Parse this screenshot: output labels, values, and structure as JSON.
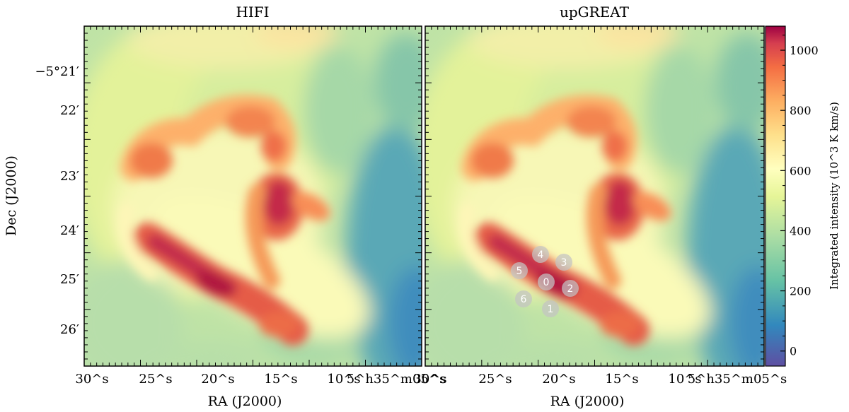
{
  "chart_data": {
    "type": "heatmap",
    "panels": [
      {
        "title": "HIFI",
        "x_ticks": [
          "30^s",
          "25^s",
          "20^s",
          "15^s",
          "10^s",
          "5^h35^m05^s"
        ],
        "y_ticks": [
          "−5°21′",
          "22′",
          "23′",
          "24′",
          "25′",
          "26′"
        ],
        "xlabel": "RA (J2000)",
        "ylabel": "Dec (J2000)"
      },
      {
        "title": "upGREAT",
        "x_ticks": [
          "30^s",
          "25^s",
          "20^s",
          "15^s",
          "10^s",
          "5^h35^m05^s"
        ],
        "xlabel": "RA (J2000)",
        "beams": [
          "0",
          "1",
          "2",
          "3",
          "4",
          "5",
          "6"
        ]
      }
    ],
    "colorbar": {
      "label": "Integrated intensity (10^3 K km/s)",
      "range": [
        -50,
        1080
      ],
      "ticks": [
        "0",
        "200",
        "400",
        "600",
        "800",
        "1000"
      ],
      "tick_values": [
        0,
        200,
        400,
        600,
        800,
        1000
      ],
      "colormap": "Spectral_r"
    }
  }
}
